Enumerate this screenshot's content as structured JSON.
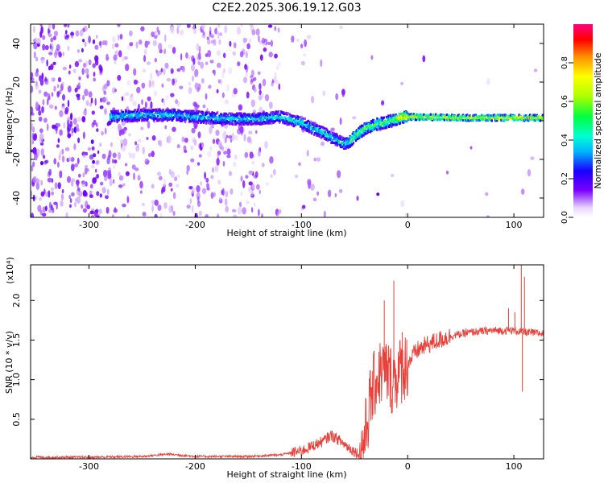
{
  "title": "C2E2.2025.306.19.12.G03",
  "chart_data": [
    {
      "type": "heatmap",
      "xlabel": "Height of straight line (km)",
      "ylabel": "Frequency (Hz)",
      "xlim": [
        -355,
        128
      ],
      "ylim": [
        -50,
        50
      ],
      "xticks": [
        -300,
        -200,
        -100,
        0,
        100
      ],
      "yticks": [
        -40,
        -20,
        0,
        20,
        40
      ],
      "colorbar": {
        "label": "Normalized spectral amplitude",
        "range": [
          0,
          1
        ],
        "ticks": [
          "0.0",
          "0.2",
          "0.4",
          "0.6",
          "0.8"
        ],
        "tick_values": [
          0,
          0.2,
          0.4,
          0.6,
          0.8
        ]
      },
      "ridge": [
        {
          "x": -280,
          "y": 2
        },
        {
          "x": -250,
          "y": 3
        },
        {
          "x": -220,
          "y": 3
        },
        {
          "x": -200,
          "y": 2
        },
        {
          "x": -170,
          "y": 1
        },
        {
          "x": -140,
          "y": 1
        },
        {
          "x": -120,
          "y": 2
        },
        {
          "x": -100,
          "y": -1
        },
        {
          "x": -85,
          "y": -5
        },
        {
          "x": -70,
          "y": -9
        },
        {
          "x": -60,
          "y": -12
        },
        {
          "x": -55,
          "y": -11
        },
        {
          "x": -50,
          "y": -8
        },
        {
          "x": -40,
          "y": -4
        },
        {
          "x": -30,
          "y": -2
        },
        {
          "x": -15,
          "y": 0
        },
        {
          "x": -5,
          "y": 2
        },
        {
          "x": 0,
          "y": 2
        },
        {
          "x": 50,
          "y": 1.5
        },
        {
          "x": 100,
          "y": 1.5
        },
        {
          "x": 128,
          "y": 1.5
        }
      ],
      "isolated_points": [
        {
          "x": -28,
          "y": -38
        }
      ]
    },
    {
      "type": "line",
      "xlabel": "Height of straight line (km)",
      "ylabel": "SNR (10 * v/v)",
      "yscale_label": "(x10⁴)",
      "xlim": [
        -355,
        128
      ],
      "ylim": [
        0,
        2.45
      ],
      "xticks": [
        -300,
        -200,
        -100,
        0,
        100
      ],
      "yticks": [
        0.5,
        1.0,
        1.5,
        2.0
      ],
      "ytick_labels": [
        "0.5",
        "1.0",
        "1.5",
        "2.0"
      ],
      "color": "#e8413a",
      "series": [
        {
          "name": "SNR",
          "points": [
            [
              -355,
              0.02
            ],
            [
              -300,
              0.02
            ],
            [
              -250,
              0.03
            ],
            [
              -225,
              0.06
            ],
            [
              -200,
              0.03
            ],
            [
              -150,
              0.03
            ],
            [
              -120,
              0.05
            ],
            [
              -100,
              0.1
            ],
            [
              -80,
              0.22
            ],
            [
              -72,
              0.3
            ],
            [
              -65,
              0.24
            ],
            [
              -55,
              0.14
            ],
            [
              -45,
              0.05
            ],
            [
              -40,
              0.3
            ],
            [
              -35,
              0.75
            ],
            [
              -30,
              1.0
            ],
            [
              -25,
              1.1
            ],
            [
              -20,
              1.1
            ],
            [
              -15,
              1.0
            ],
            [
              -10,
              1.05
            ],
            [
              -5,
              1.15
            ],
            [
              0,
              1.2
            ],
            [
              5,
              1.3
            ],
            [
              10,
              1.38
            ],
            [
              20,
              1.45
            ],
            [
              30,
              1.5
            ],
            [
              40,
              1.55
            ],
            [
              60,
              1.6
            ],
            [
              80,
              1.62
            ],
            [
              100,
              1.62
            ],
            [
              110,
              1.6
            ],
            [
              128,
              1.58
            ]
          ]
        },
        {
          "name": "spikes",
          "points": [
            [
              -22,
              2.0
            ],
            [
              -13,
              2.25
            ],
            [
              -5,
              1.6
            ],
            [
              55,
              1.65
            ],
            [
              95,
              1.9
            ],
            [
              101,
              1.85
            ],
            [
              107,
              2.45
            ],
            [
              110,
              2.3
            ],
            [
              108,
              0.85
            ]
          ]
        }
      ]
    }
  ]
}
